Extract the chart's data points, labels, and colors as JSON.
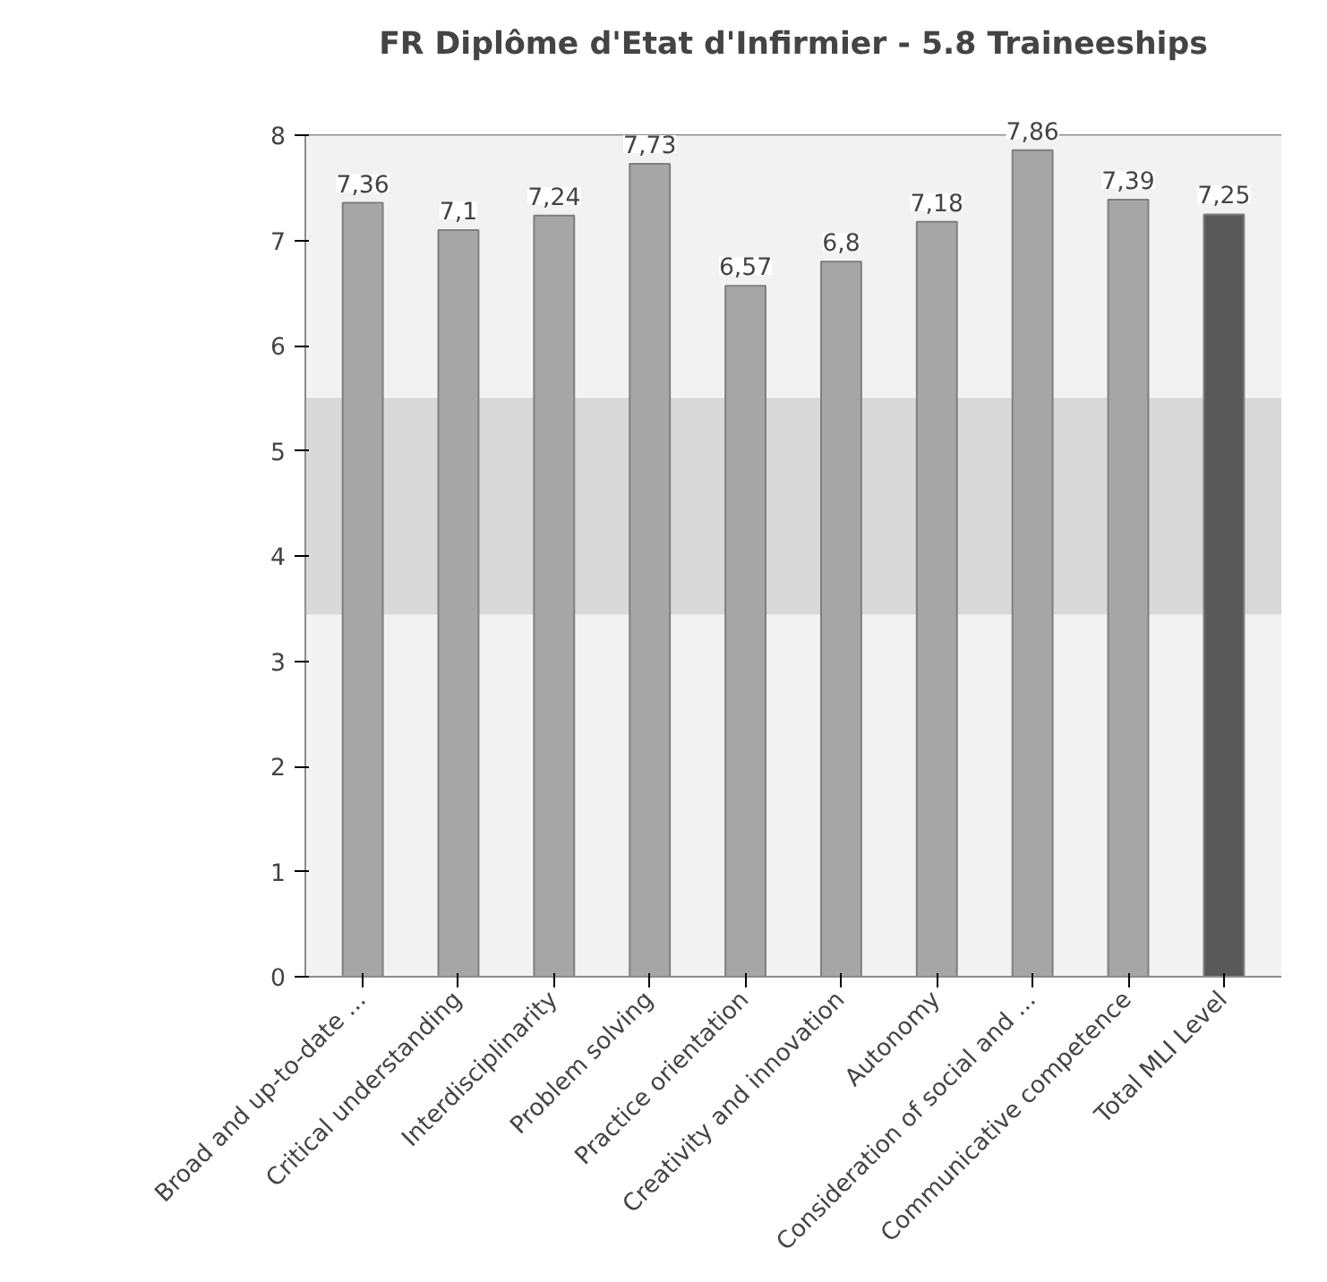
{
  "chart_data": {
    "type": "bar",
    "title": "FR Diplôme d'Etat d'Infirmier - 5.8 Traineeships",
    "categories": [
      "Broad and up-to-date ...",
      "Critical understanding",
      "Interdisciplinarity",
      "Problem solving",
      "Practice orientation",
      "Creativity and innovation",
      "Autonomy",
      "Consideration of social and ...",
      "Communicative competence",
      "Total MLI Level"
    ],
    "values": [
      7.36,
      7.1,
      7.24,
      7.73,
      6.57,
      6.8,
      7.18,
      7.86,
      7.39,
      7.25
    ],
    "colors": [
      "#a6a6a6",
      "#a6a6a6",
      "#a6a6a6",
      "#a6a6a6",
      "#a6a6a6",
      "#a6a6a6",
      "#a6a6a6",
      "#a6a6a6",
      "#a6a6a6",
      "#595959"
    ],
    "value_labels": [
      "7,36",
      "7,1",
      "7,24",
      "7,73",
      "6,57",
      "6,8",
      "7,18",
      "7,86",
      "7,39",
      "7,25"
    ],
    "ylim": [
      0,
      8
    ],
    "yticks": [
      0,
      1,
      2,
      3,
      4,
      5,
      6,
      7,
      8
    ],
    "grid": "y",
    "bands": [
      {
        "axis": "y",
        "from": 3.45,
        "to": 5.5,
        "color": "#d9d9d9"
      }
    ]
  }
}
